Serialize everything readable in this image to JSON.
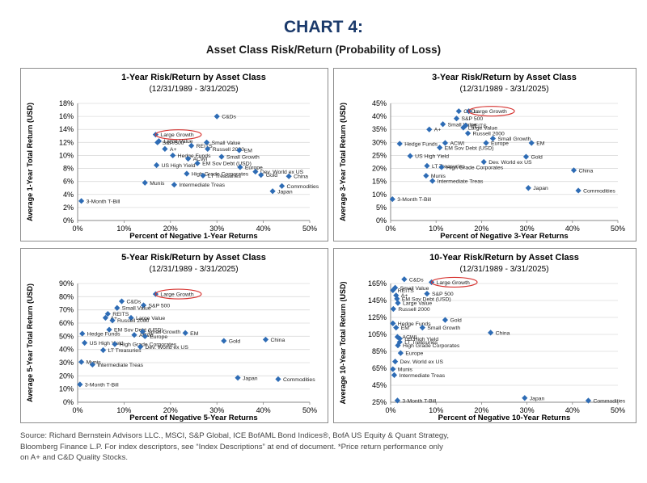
{
  "header": {
    "title": "CHART 4:",
    "subtitle": "Asset Class Risk/Return (Probability of Loss)"
  },
  "source": {
    "line1": "Source: Richard Bernstein Advisors LLC., MSCI, S&P Global, ICE BofAML Bond Indices®, BofA US Equity & Quant Strategy,",
    "line2": "Bloomberg Finance L.P. For index descriptors, see “Index Descriptions” at end of document. *Price return performance only",
    "line3": "on A+ and C&D Quality Stocks."
  },
  "colors": {
    "marker": "#2e6cb5",
    "highlight": "#d6322f",
    "title": "#1b3a6b",
    "grid": "#d9d9d9"
  },
  "chart_data": [
    {
      "type": "scatter",
      "title": "1-Year Risk/Return by Asset Class",
      "subtitle": "(12/31/1989 - 3/31/2025)",
      "xlabel": "Percent of Negative 1-Year Returns",
      "ylabel": "Average 1-Year Total Return (USD)",
      "xlim": [
        0,
        50
      ],
      "ylim": [
        0,
        18
      ],
      "xticks": [
        "0%",
        "10%",
        "20%",
        "30%",
        "40%",
        "50%"
      ],
      "yticks": [
        "0%",
        "2%",
        "4%",
        "6%",
        "8%",
        "10%",
        "12%",
        "14%",
        "16%",
        "18%"
      ],
      "highlight": "Large Growth",
      "points": [
        {
          "label": "C&Ds",
          "x": 30.0,
          "y": 16.0
        },
        {
          "label": "Large Growth",
          "x": 16.8,
          "y": 13.2
        },
        {
          "label": "Large Value",
          "x": 17.5,
          "y": 12.2
        },
        {
          "label": "S&P 500",
          "x": 17.2,
          "y": 12.0
        },
        {
          "label": "REITS",
          "x": 24.5,
          "y": 11.5
        },
        {
          "label": "Small Value",
          "x": 27.8,
          "y": 12.0
        },
        {
          "label": "A+",
          "x": 18.8,
          "y": 11.0
        },
        {
          "label": "Russell 2000",
          "x": 28.0,
          "y": 11.0
        },
        {
          "label": "EM",
          "x": 34.8,
          "y": 10.8
        },
        {
          "label": "Hedge Funds",
          "x": 20.5,
          "y": 10.0
        },
        {
          "label": "ACWI",
          "x": 23.8,
          "y": 9.5
        },
        {
          "label": "Small Growth",
          "x": 31.0,
          "y": 9.8
        },
        {
          "label": "EM Sov Debt (USD)",
          "x": 25.8,
          "y": 8.8
        },
        {
          "label": "Europe",
          "x": 35.0,
          "y": 8.2
        },
        {
          "label": "US High Yield",
          "x": 17.0,
          "y": 8.5
        },
        {
          "label": "Dev. World ex US",
          "x": 38.3,
          "y": 7.5
        },
        {
          "label": "High Grade Corporates",
          "x": 23.5,
          "y": 7.2
        },
        {
          "label": "Gold",
          "x": 39.5,
          "y": 7.0
        },
        {
          "label": "LT Treasuries",
          "x": 27.0,
          "y": 6.9
        },
        {
          "label": "China",
          "x": 45.5,
          "y": 6.8
        },
        {
          "label": "Munis",
          "x": 14.5,
          "y": 5.8
        },
        {
          "label": "Intermediate Treas",
          "x": 20.8,
          "y": 5.5
        },
        {
          "label": "Commodities",
          "x": 44.0,
          "y": 5.3
        },
        {
          "label": "Japan",
          "x": 42.0,
          "y": 4.5
        },
        {
          "label": "3-Month T-Bill",
          "x": 0.8,
          "y": 3.0
        }
      ]
    },
    {
      "type": "scatter",
      "title": "3-Year Risk/Return by Asset Class",
      "subtitle": "(12/31/1989 - 3/31/2025)",
      "xlabel": "Percent of Negative 3-Year Returns",
      "ylabel": "Average 3-Year Total Return (USD)",
      "xlim": [
        0,
        50
      ],
      "ylim": [
        0,
        45
      ],
      "xticks": [
        "0%",
        "10%",
        "20%",
        "30%",
        "40%",
        "50%"
      ],
      "yticks": [
        "0%",
        "5%",
        "10%",
        "15%",
        "20%",
        "25%",
        "30%",
        "35%",
        "40%",
        "45%"
      ],
      "highlight": "Large Growth",
      "points": [
        {
          "label": "C&Ds",
          "x": 15.0,
          "y": 42.0
        },
        {
          "label": "Large Growth",
          "x": 17.2,
          "y": 42.0
        },
        {
          "label": "S&P 500",
          "x": 14.5,
          "y": 39.2
        },
        {
          "label": "Small Value",
          "x": 11.5,
          "y": 37.0
        },
        {
          "label": "REITS",
          "x": 16.5,
          "y": 36.5
        },
        {
          "label": "Large Value",
          "x": 16.0,
          "y": 35.7
        },
        {
          "label": "A+",
          "x": 8.5,
          "y": 35.0
        },
        {
          "label": "Russell 2000",
          "x": 17.0,
          "y": 33.5
        },
        {
          "label": "Small Growth",
          "x": 22.5,
          "y": 31.5
        },
        {
          "label": "Hedge Funds",
          "x": 2.0,
          "y": 29.5
        },
        {
          "label": "ACWI",
          "x": 12.0,
          "y": 29.8
        },
        {
          "label": "Europe",
          "x": 21.0,
          "y": 29.8
        },
        {
          "label": "EM",
          "x": 31.0,
          "y": 29.8
        },
        {
          "label": "EM Sov Debt (USD)",
          "x": 10.8,
          "y": 28.0
        },
        {
          "label": "US High Yield",
          "x": 4.3,
          "y": 24.8
        },
        {
          "label": "Gold",
          "x": 29.8,
          "y": 24.5
        },
        {
          "label": "Dev. World ex US",
          "x": 20.5,
          "y": 22.5
        },
        {
          "label": "LT Treasuries",
          "x": 8.0,
          "y": 21.0
        },
        {
          "label": "High Grade Corporates",
          "x": 11.2,
          "y": 20.5
        },
        {
          "label": "China",
          "x": 40.3,
          "y": 19.3
        },
        {
          "label": "Munis",
          "x": 7.8,
          "y": 17.2
        },
        {
          "label": "Intermediate Treas",
          "x": 9.2,
          "y": 15.2
        },
        {
          "label": "Japan",
          "x": 30.3,
          "y": 12.5
        },
        {
          "label": "Commodities",
          "x": 41.3,
          "y": 11.5
        },
        {
          "label": "3-Month T-Bill",
          "x": 0.4,
          "y": 8.2
        }
      ]
    },
    {
      "type": "scatter",
      "title": "5-Year Risk/Return by Asset Class",
      "subtitle": "(12/31/1989 - 3/31/2025)",
      "xlabel": "Percent of Negative 5-Year Returns",
      "ylabel": "Average 5-Year Total Return (USD)",
      "xlim": [
        0,
        50
      ],
      "ylim": [
        0,
        90
      ],
      "xticks": [
        "0%",
        "10%",
        "20%",
        "30%",
        "40%",
        "50%"
      ],
      "yticks": [
        "0%",
        "10%",
        "20%",
        "30%",
        "40%",
        "50%",
        "60%",
        "70%",
        "80%",
        "90%"
      ],
      "highlight": "Large Growth",
      "points": [
        {
          "label": "Large Growth",
          "x": 16.8,
          "y": 82.0
        },
        {
          "label": "C&Ds",
          "x": 9.5,
          "y": 76.5
        },
        {
          "label": "S&P 500",
          "x": 14.2,
          "y": 73.5
        },
        {
          "label": "Small Value",
          "x": 8.5,
          "y": 71.5
        },
        {
          "label": "REITS",
          "x": 6.5,
          "y": 67.0
        },
        {
          "label": "Large Value",
          "x": 11.5,
          "y": 64.0
        },
        {
          "label": "A+",
          "x": 6.0,
          "y": 64.0
        },
        {
          "label": "Russell 2000",
          "x": 7.5,
          "y": 62.0
        },
        {
          "label": "Hedge Funds",
          "x": 1.0,
          "y": 52.0
        },
        {
          "label": "EM Sov Debt (USD)",
          "x": 6.8,
          "y": 55.0
        },
        {
          "label": "Small Growth",
          "x": 14.0,
          "y": 53.5
        },
        {
          "label": "EM",
          "x": 23.2,
          "y": 52.5
        },
        {
          "label": "ACWI",
          "x": 12.2,
          "y": 51.0
        },
        {
          "label": "Europe",
          "x": 14.5,
          "y": 50.0
        },
        {
          "label": "Gold",
          "x": 31.5,
          "y": 46.5
        },
        {
          "label": "China",
          "x": 40.5,
          "y": 47.5
        },
        {
          "label": "US High Yield",
          "x": 1.5,
          "y": 45.0
        },
        {
          "label": "High Grade Corporates",
          "x": 8.0,
          "y": 44.0
        },
        {
          "label": "Dev. World ex US",
          "x": 13.5,
          "y": 42.0
        },
        {
          "label": "LT Treasuries",
          "x": 5.5,
          "y": 39.5
        },
        {
          "label": "Munis",
          "x": 0.8,
          "y": 30.5
        },
        {
          "label": "Intermediate Treas",
          "x": 3.2,
          "y": 28.5
        },
        {
          "label": "Japan",
          "x": 34.5,
          "y": 18.5
        },
        {
          "label": "Commodities",
          "x": 43.2,
          "y": 17.5
        },
        {
          "label": "3-Month T-Bill",
          "x": 0.5,
          "y": 13.5
        }
      ]
    },
    {
      "type": "scatter",
      "title": "10-Year Risk/Return by Asset Class",
      "subtitle": "(12/31/1989 - 3/31/2025)",
      "xlabel": "Percent of Negative 10-Year Returns",
      "ylabel": "Average 10-Year Total Return (USD)",
      "xlim": [
        0,
        50
      ],
      "ylim": [
        25,
        165
      ],
      "xticks": [
        "0%",
        "10%",
        "20%",
        "30%",
        "40%",
        "50%"
      ],
      "yticks": [
        "25%",
        "45%",
        "65%",
        "85%",
        "105%",
        "125%",
        "145%",
        "165%"
      ],
      "highlight": "Large Growth",
      "points": [
        {
          "label": "C&Ds",
          "x": 3.0,
          "y": 170.0
        },
        {
          "label": "Large Growth",
          "x": 9.0,
          "y": 166.5
        },
        {
          "label": "Small Value",
          "x": 1.0,
          "y": 160.0
        },
        {
          "label": "REITS",
          "x": 0.5,
          "y": 157.0
        },
        {
          "label": "S&P 500",
          "x": 8.0,
          "y": 153.0
        },
        {
          "label": "A+",
          "x": 1.2,
          "y": 151.0
        },
        {
          "label": "EM Sov Debt (USD)",
          "x": 1.4,
          "y": 147.0
        },
        {
          "label": "Large Value",
          "x": 1.6,
          "y": 142.0
        },
        {
          "label": "Russell 2000",
          "x": 0.6,
          "y": 135.0
        },
        {
          "label": "Gold",
          "x": 12.0,
          "y": 122.0
        },
        {
          "label": "Hedge Funds",
          "x": 0.5,
          "y": 118.0
        },
        {
          "label": "EM",
          "x": 1.2,
          "y": 113.0
        },
        {
          "label": "Small Growth",
          "x": 7.0,
          "y": 113.0
        },
        {
          "label": "China",
          "x": 22.0,
          "y": 107.0
        },
        {
          "label": "ACWI",
          "x": 1.5,
          "y": 102.0
        },
        {
          "label": "US High Yield",
          "x": 2.0,
          "y": 100.0
        },
        {
          "label": "LT Treasuries",
          "x": 2.0,
          "y": 96.0
        },
        {
          "label": "High Grade Corporates",
          "x": 1.6,
          "y": 92.0
        },
        {
          "label": "Europe",
          "x": 2.2,
          "y": 83.0
        },
        {
          "label": "Dev. World ex US",
          "x": 1.0,
          "y": 73.0
        },
        {
          "label": "Munis",
          "x": 0.5,
          "y": 64.0
        },
        {
          "label": "Intermediate Treas",
          "x": 0.8,
          "y": 57.0
        },
        {
          "label": "3-Month T-Bill",
          "x": 1.5,
          "y": 27.0
        },
        {
          "label": "Japan",
          "x": 29.5,
          "y": 30.0
        },
        {
          "label": "Commodities",
          "x": 43.5,
          "y": 26.0
        }
      ]
    }
  ]
}
